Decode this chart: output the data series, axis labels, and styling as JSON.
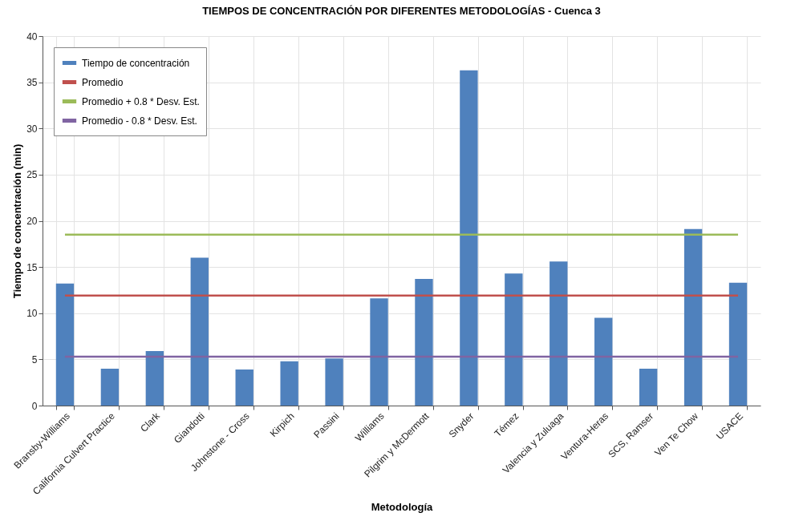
{
  "chart_data": {
    "type": "bar",
    "title": "TIEMPOS DE CONCENTRACIÓN POR DIFERENTES METODOLOGÍAS - Cuenca 3",
    "xlabel": "Metodología",
    "ylabel": "Tiempo de concentración (min)",
    "categories": [
      "Bransby-Williams",
      "California Culvert Practice",
      "Clark",
      "Giandotti",
      "Johnstone - Cross",
      "Kirpich",
      "Passini",
      "Williams",
      "Pilgrim y McDermott",
      "Snyder",
      "Témez",
      "Valencia y Zuluaga",
      "Ventura-Heras",
      "SCS, Ramser",
      "Ven Te Chow",
      "USACE"
    ],
    "series": [
      {
        "name": "Tiempo de concentración",
        "color": "#4f81bd",
        "values": [
          13.2,
          4.0,
          5.9,
          16.0,
          3.9,
          4.8,
          5.1,
          11.6,
          13.7,
          36.3,
          14.3,
          15.6,
          9.5,
          4.0,
          19.1,
          13.3
        ]
      },
      {
        "name": "Promedio",
        "type": "line",
        "color": "#c0504d",
        "values": [
          11.9,
          11.9,
          11.9,
          11.9,
          11.9,
          11.9,
          11.9,
          11.9,
          11.9,
          11.9,
          11.9,
          11.9,
          11.9,
          11.9,
          11.9,
          11.9
        ]
      },
      {
        "name": "Promedio + 0.8 * Desv. Est.",
        "type": "line",
        "color": "#9bbb59",
        "values": [
          18.5,
          18.5,
          18.5,
          18.5,
          18.5,
          18.5,
          18.5,
          18.5,
          18.5,
          18.5,
          18.5,
          18.5,
          18.5,
          18.5,
          18.5,
          18.5
        ]
      },
      {
        "name": "Promedio - 0.8 * Desv. Est.",
        "type": "line",
        "color": "#8064a2",
        "values": [
          5.3,
          5.3,
          5.3,
          5.3,
          5.3,
          5.3,
          5.3,
          5.3,
          5.3,
          5.3,
          5.3,
          5.3,
          5.3,
          5.3,
          5.3,
          5.3
        ]
      }
    ],
    "ylim": [
      0,
      40
    ],
    "yticks": [
      0,
      5,
      10,
      15,
      20,
      25,
      30,
      35,
      40
    ],
    "grid": true,
    "legend": "top left",
    "marker": "none"
  }
}
